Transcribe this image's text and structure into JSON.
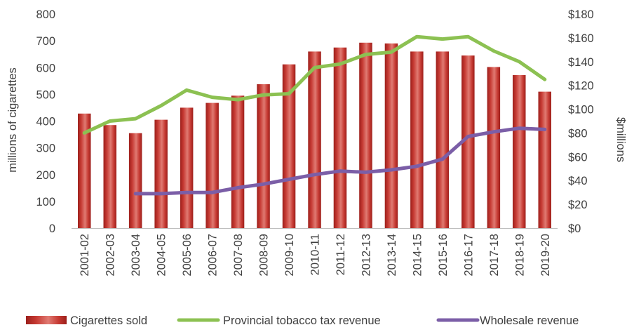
{
  "chart_data": {
    "type": "bar",
    "categories": [
      "2001-02",
      "2002-03",
      "2003-04",
      "2004-05",
      "2005-06",
      "2006-07",
      "2007-08",
      "2008-09",
      "2009-10",
      "2010-11",
      "2011-12",
      "2012-13",
      "2013-14",
      "2014-15",
      "2015-16",
      "2016-17",
      "2017-18",
      "2018-19",
      "2019-20"
    ],
    "series": [
      {
        "name": "Cigarettes sold",
        "kind": "bar",
        "axis": "left",
        "color": "#c0302b",
        "values": [
          428,
          385,
          355,
          405,
          450,
          468,
          495,
          538,
          612,
          660,
          675,
          693,
          690,
          660,
          660,
          645,
          602,
          572,
          510
        ]
      },
      {
        "name": "Provincial tobacco tax revenue",
        "kind": "line",
        "axis": "right",
        "color": "#8cc152",
        "values": [
          80,
          90,
          92,
          103,
          116,
          110,
          108,
          112,
          113,
          135,
          138,
          146,
          148,
          161,
          159,
          161,
          149,
          140,
          125
        ]
      },
      {
        "name": "Wholesale revenue",
        "kind": "line",
        "axis": "right",
        "color": "#7b5ea7",
        "values": [
          null,
          null,
          29,
          29,
          30,
          30,
          34,
          37,
          41,
          45,
          48,
          47,
          49,
          52,
          58,
          77,
          81,
          84,
          83
        ]
      }
    ],
    "ylabel": "millions of cigarettes",
    "ylim": [
      0,
      800
    ],
    "yticks": [
      "0",
      "100",
      "200",
      "300",
      "400",
      "500",
      "600",
      "700",
      "800"
    ],
    "y2label": "$millions",
    "y2lim": [
      0,
      180
    ],
    "y2ticks": [
      "$0",
      "$20",
      "$40",
      "$60",
      "$80",
      "$100",
      "$120",
      "$140",
      "$160",
      "$180"
    ],
    "grid": false,
    "legend_position": "bottom"
  }
}
